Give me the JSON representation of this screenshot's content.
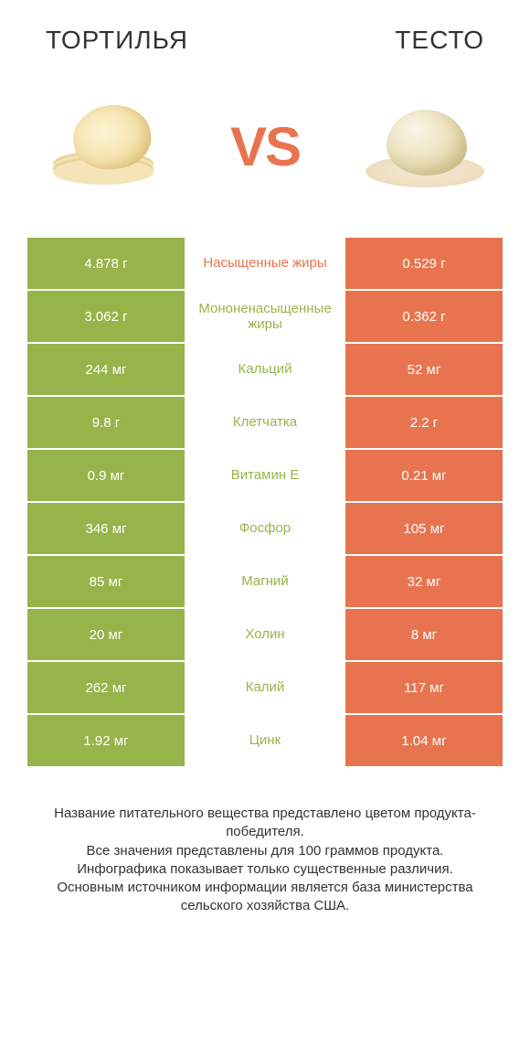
{
  "colors": {
    "left_bg": "#97b44a",
    "right_bg": "#e8744f",
    "mid_green": "#97b44a",
    "mid_orange": "#e8744f",
    "vs": "#e8744f"
  },
  "header": {
    "left_title": "ТОРТИЛЬЯ",
    "right_title": "ТЕСТО",
    "vs_label": "VS"
  },
  "rows": [
    {
      "left": "4.878 г",
      "mid": "Насыщенные жиры",
      "right": "0.529 г",
      "mid_color": "#e8744f"
    },
    {
      "left": "3.062 г",
      "mid": "Мононенасыщенные жиры",
      "right": "0.362 г",
      "mid_color": "#97b44a"
    },
    {
      "left": "244 мг",
      "mid": "Кальций",
      "right": "52 мг",
      "mid_color": "#97b44a"
    },
    {
      "left": "9.8 г",
      "mid": "Клетчатка",
      "right": "2.2 г",
      "mid_color": "#97b44a"
    },
    {
      "left": "0.9 мг",
      "mid": "Витамин E",
      "right": "0.21 мг",
      "mid_color": "#97b44a"
    },
    {
      "left": "346 мг",
      "mid": "Фосфор",
      "right": "105 мг",
      "mid_color": "#97b44a"
    },
    {
      "left": "85 мг",
      "mid": "Магний",
      "right": "32 мг",
      "mid_color": "#97b44a"
    },
    {
      "left": "20 мг",
      "mid": "Холин",
      "right": "8 мг",
      "mid_color": "#97b44a"
    },
    {
      "left": "262 мг",
      "mid": "Калий",
      "right": "117 мг",
      "mid_color": "#97b44a"
    },
    {
      "left": "1.92 мг",
      "mid": "Цинк",
      "right": "1.04 мг",
      "mid_color": "#97b44a"
    }
  ],
  "footer": {
    "line1": "Название питательного вещества представлено цветом продукта-победителя.",
    "line2": "Все значения представлены для 100 граммов продукта.",
    "line3": "Инфографика показывает только существенные различия.",
    "line4": "Основным источником информации является база министерства сельского хозяйства США."
  }
}
